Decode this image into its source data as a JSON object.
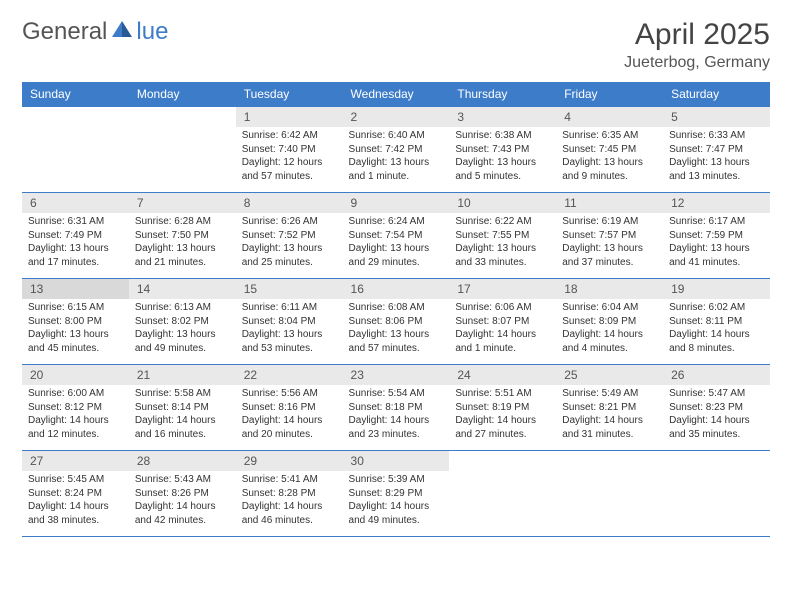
{
  "logo": {
    "part1": "General",
    "part2": "lue"
  },
  "header": {
    "title": "April 2025",
    "location": "Jueterbog, Germany"
  },
  "style": {
    "accent": "#3d7cc9",
    "daynum_bg": "#e9e9e9",
    "daynum_shaded_bg": "#d9d9d9",
    "text_color": "#333333",
    "header_text_color": "#ffffff"
  },
  "dayNames": [
    "Sunday",
    "Monday",
    "Tuesday",
    "Wednesday",
    "Thursday",
    "Friday",
    "Saturday"
  ],
  "weeks": [
    [
      null,
      null,
      {
        "num": 1,
        "sunrise": "6:42 AM",
        "sunset": "7:40 PM",
        "daylight": "12 hours and 57 minutes."
      },
      {
        "num": 2,
        "sunrise": "6:40 AM",
        "sunset": "7:42 PM",
        "daylight": "13 hours and 1 minute."
      },
      {
        "num": 3,
        "sunrise": "6:38 AM",
        "sunset": "7:43 PM",
        "daylight": "13 hours and 5 minutes."
      },
      {
        "num": 4,
        "sunrise": "6:35 AM",
        "sunset": "7:45 PM",
        "daylight": "13 hours and 9 minutes."
      },
      {
        "num": 5,
        "sunrise": "6:33 AM",
        "sunset": "7:47 PM",
        "daylight": "13 hours and 13 minutes."
      }
    ],
    [
      {
        "num": 6,
        "sunrise": "6:31 AM",
        "sunset": "7:49 PM",
        "daylight": "13 hours and 17 minutes."
      },
      {
        "num": 7,
        "sunrise": "6:28 AM",
        "sunset": "7:50 PM",
        "daylight": "13 hours and 21 minutes."
      },
      {
        "num": 8,
        "sunrise": "6:26 AM",
        "sunset": "7:52 PM",
        "daylight": "13 hours and 25 minutes."
      },
      {
        "num": 9,
        "sunrise": "6:24 AM",
        "sunset": "7:54 PM",
        "daylight": "13 hours and 29 minutes."
      },
      {
        "num": 10,
        "sunrise": "6:22 AM",
        "sunset": "7:55 PM",
        "daylight": "13 hours and 33 minutes."
      },
      {
        "num": 11,
        "sunrise": "6:19 AM",
        "sunset": "7:57 PM",
        "daylight": "13 hours and 37 minutes."
      },
      {
        "num": 12,
        "sunrise": "6:17 AM",
        "sunset": "7:59 PM",
        "daylight": "13 hours and 41 minutes."
      }
    ],
    [
      {
        "num": 13,
        "shaded": true,
        "sunrise": "6:15 AM",
        "sunset": "8:00 PM",
        "daylight": "13 hours and 45 minutes."
      },
      {
        "num": 14,
        "sunrise": "6:13 AM",
        "sunset": "8:02 PM",
        "daylight": "13 hours and 49 minutes."
      },
      {
        "num": 15,
        "sunrise": "6:11 AM",
        "sunset": "8:04 PM",
        "daylight": "13 hours and 53 minutes."
      },
      {
        "num": 16,
        "sunrise": "6:08 AM",
        "sunset": "8:06 PM",
        "daylight": "13 hours and 57 minutes."
      },
      {
        "num": 17,
        "sunrise": "6:06 AM",
        "sunset": "8:07 PM",
        "daylight": "14 hours and 1 minute."
      },
      {
        "num": 18,
        "sunrise": "6:04 AM",
        "sunset": "8:09 PM",
        "daylight": "14 hours and 4 minutes."
      },
      {
        "num": 19,
        "sunrise": "6:02 AM",
        "sunset": "8:11 PM",
        "daylight": "14 hours and 8 minutes."
      }
    ],
    [
      {
        "num": 20,
        "sunrise": "6:00 AM",
        "sunset": "8:12 PM",
        "daylight": "14 hours and 12 minutes."
      },
      {
        "num": 21,
        "sunrise": "5:58 AM",
        "sunset": "8:14 PM",
        "daylight": "14 hours and 16 minutes."
      },
      {
        "num": 22,
        "sunrise": "5:56 AM",
        "sunset": "8:16 PM",
        "daylight": "14 hours and 20 minutes."
      },
      {
        "num": 23,
        "sunrise": "5:54 AM",
        "sunset": "8:18 PM",
        "daylight": "14 hours and 23 minutes."
      },
      {
        "num": 24,
        "sunrise": "5:51 AM",
        "sunset": "8:19 PM",
        "daylight": "14 hours and 27 minutes."
      },
      {
        "num": 25,
        "sunrise": "5:49 AM",
        "sunset": "8:21 PM",
        "daylight": "14 hours and 31 minutes."
      },
      {
        "num": 26,
        "sunrise": "5:47 AM",
        "sunset": "8:23 PM",
        "daylight": "14 hours and 35 minutes."
      }
    ],
    [
      {
        "num": 27,
        "sunrise": "5:45 AM",
        "sunset": "8:24 PM",
        "daylight": "14 hours and 38 minutes."
      },
      {
        "num": 28,
        "sunrise": "5:43 AM",
        "sunset": "8:26 PM",
        "daylight": "14 hours and 42 minutes."
      },
      {
        "num": 29,
        "sunrise": "5:41 AM",
        "sunset": "8:28 PM",
        "daylight": "14 hours and 46 minutes."
      },
      {
        "num": 30,
        "sunrise": "5:39 AM",
        "sunset": "8:29 PM",
        "daylight": "14 hours and 49 minutes."
      },
      null,
      null,
      null
    ]
  ]
}
